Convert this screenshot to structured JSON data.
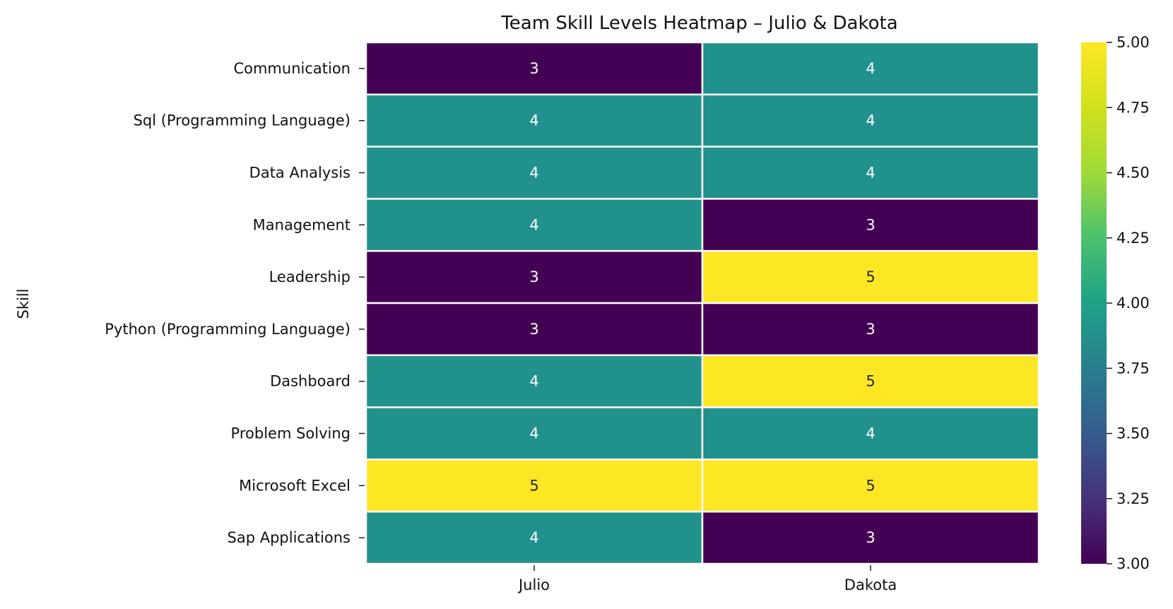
{
  "chart_data": {
    "type": "heatmap",
    "title": "Team Skill Levels Heatmap – Julio & Dakota",
    "xlabel": "",
    "ylabel": "Skill",
    "x_categories": [
      "Julio",
      "Dakota"
    ],
    "y_categories": [
      "Communication",
      "Sql (Programming Language)",
      "Data Analysis",
      "Management",
      "Leadership",
      "Python (Programming Language)",
      "Dashboard",
      "Problem Solving",
      "Microsoft Excel",
      "Sap Applications"
    ],
    "values": [
      [
        3,
        4
      ],
      [
        4,
        4
      ],
      [
        4,
        4
      ],
      [
        4,
        3
      ],
      [
        3,
        5
      ],
      [
        3,
        3
      ],
      [
        4,
        5
      ],
      [
        4,
        4
      ],
      [
        5,
        5
      ],
      [
        4,
        3
      ]
    ],
    "colorscale": "viridis",
    "color_range": [
      3,
      5
    ],
    "colorbar_ticks": [
      "3.00",
      "3.25",
      "3.50",
      "3.75",
      "4.00",
      "4.25",
      "4.50",
      "4.75",
      "5.00"
    ],
    "cell_colors": {
      "3": "#440154",
      "4": "#21918c",
      "5": "#fde725"
    },
    "label_colors": {
      "dark_cell": "#ffffff",
      "light_cell": "#262626"
    },
    "grid": false
  }
}
